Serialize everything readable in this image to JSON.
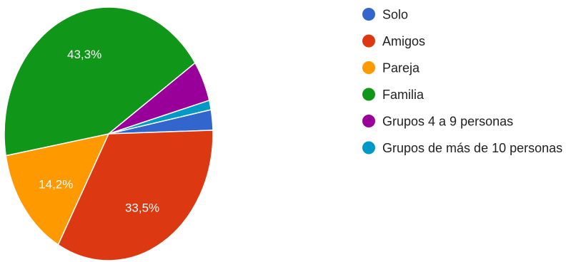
{
  "chart_data": {
    "type": "pie",
    "legend_position": "right",
    "slices": [
      {
        "label": "Solo",
        "value": 2.6,
        "color": "#3366cc",
        "display": ""
      },
      {
        "label": "Amigos",
        "value": 33.5,
        "color": "#dc3912",
        "display": "33,5%"
      },
      {
        "label": "Pareja",
        "value": 14.2,
        "color": "#ff9900",
        "display": "14,2%"
      },
      {
        "label": "Familia",
        "value": 43.3,
        "color": "#109618",
        "display": "43,3%"
      },
      {
        "label": "Grupos 4 a 9 personas",
        "value": 5.2,
        "color": "#990099",
        "display": ""
      },
      {
        "label": "Grupos de más de 10 personas",
        "value": 1.2,
        "color": "#0099c6",
        "display": ""
      }
    ]
  }
}
